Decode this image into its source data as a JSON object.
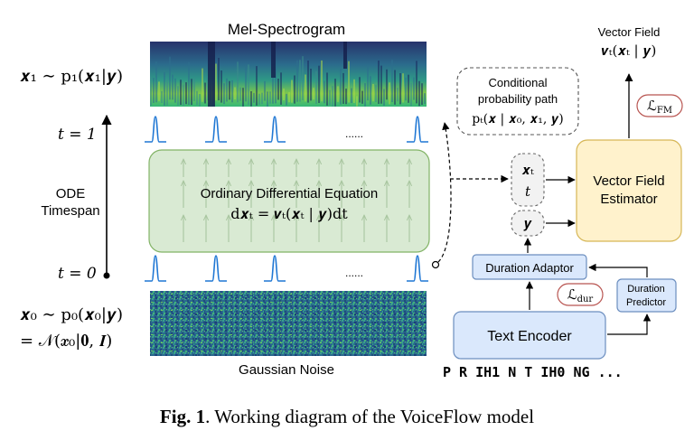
{
  "labels": {
    "mel_title": "Mel-Spectrogram",
    "noise_title": "Gaussian Noise",
    "x1_dist": "𝒙₁ ∼ p₁(𝒙₁|𝒚)",
    "x0_dist_line1": "𝒙₀ ∼ p₀(𝒙₀|𝒚)",
    "x0_dist_line2": "= 𝒩(𝒙₀|𝟎, 𝑰)",
    "t1": "t = 1",
    "t0": "t = 0",
    "ode_timespan_1": "ODE",
    "ode_timespan_2": "Timespan",
    "ellipsis": "......",
    "ode_title": "Ordinary Differential Equation",
    "ode_equation": "d𝒙ₜ = 𝒗ₜ(𝒙ₜ | 𝒚)dt",
    "cond_path_1": "Conditional",
    "cond_path_2": "probability path",
    "cond_path_3": "pₜ(𝒙 | 𝒙₀, 𝒙₁, 𝒚)",
    "xt_label": "𝒙ₜ",
    "t_label": "t",
    "y_label": "𝒚",
    "vf_title_1": "Vector Field",
    "vf_title_2": "𝒗ₜ(𝒙ₜ | 𝒚)",
    "loss_fm": "ℒ",
    "loss_fm_sub": "FM",
    "vfe_1": "Vector Field",
    "vfe_2": "Estimator",
    "duration_adaptor": "Duration Adaptor",
    "loss_dur": "ℒ",
    "loss_dur_sub": "dur",
    "duration_predictor_1": "Duration",
    "duration_predictor_2": "Predictor",
    "text_encoder": "Text Encoder",
    "phonemes": "P R IH1 N T IH0 NG ..."
  },
  "caption": {
    "fig_label": "Fig. 1",
    "text": ". Working diagram of the VoiceFlow model"
  },
  "colors": {
    "ode_fill": "#d9ead3",
    "ode_stroke": "#82b366",
    "vfe_fill": "#fff2cc",
    "vfe_stroke": "#d6b656",
    "blue_fill": "#dae8fc",
    "blue_stroke": "#6c8ebf",
    "loss_stroke": "#b85450",
    "pulse": "#1f77d4"
  }
}
